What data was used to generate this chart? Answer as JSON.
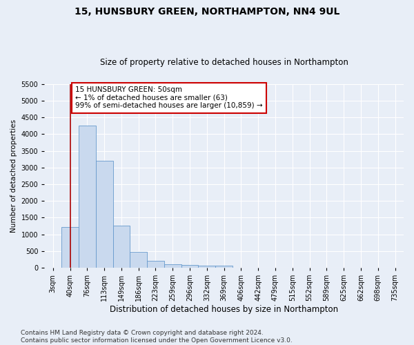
{
  "title": "15, HUNSBURY GREEN, NORTHAMPTON, NN4 9UL",
  "subtitle": "Size of property relative to detached houses in Northampton",
  "xlabel": "Distribution of detached houses by size in Northampton",
  "ylabel": "Number of detached properties",
  "categories": [
    "3sqm",
    "40sqm",
    "76sqm",
    "113sqm",
    "149sqm",
    "186sqm",
    "223sqm",
    "259sqm",
    "296sqm",
    "332sqm",
    "369sqm",
    "406sqm",
    "442sqm",
    "479sqm",
    "515sqm",
    "552sqm",
    "589sqm",
    "625sqm",
    "662sqm",
    "698sqm",
    "735sqm"
  ],
  "values": [
    0,
    1220,
    4250,
    3200,
    1250,
    480,
    200,
    100,
    80,
    60,
    50,
    0,
    0,
    0,
    0,
    0,
    0,
    0,
    0,
    0,
    0
  ],
  "bar_color": "#c9d9ee",
  "bar_edge_color": "#6699cc",
  "vline_x_index": 1,
  "vline_color": "#aa0000",
  "annotation_text": "15 HUNSBURY GREEN: 50sqm\n← 1% of detached houses are smaller (63)\n99% of semi-detached houses are larger (10,859) →",
  "annotation_box_color": "#ffffff",
  "annotation_box_edge": "#cc0000",
  "annotation_fontsize": 7.5,
  "ylim": [
    0,
    5500
  ],
  "yticks": [
    0,
    500,
    1000,
    1500,
    2000,
    2500,
    3000,
    3500,
    4000,
    4500,
    5000,
    5500
  ],
  "footer": "Contains HM Land Registry data © Crown copyright and database right 2024.\nContains public sector information licensed under the Open Government Licence v3.0.",
  "bg_color": "#e8eef7",
  "plot_bg_color": "#e8eef7",
  "grid_color": "#ffffff",
  "title_fontsize": 10,
  "subtitle_fontsize": 8.5,
  "xlabel_fontsize": 8.5,
  "ylabel_fontsize": 7.5,
  "tick_fontsize": 7,
  "footer_fontsize": 6.5
}
